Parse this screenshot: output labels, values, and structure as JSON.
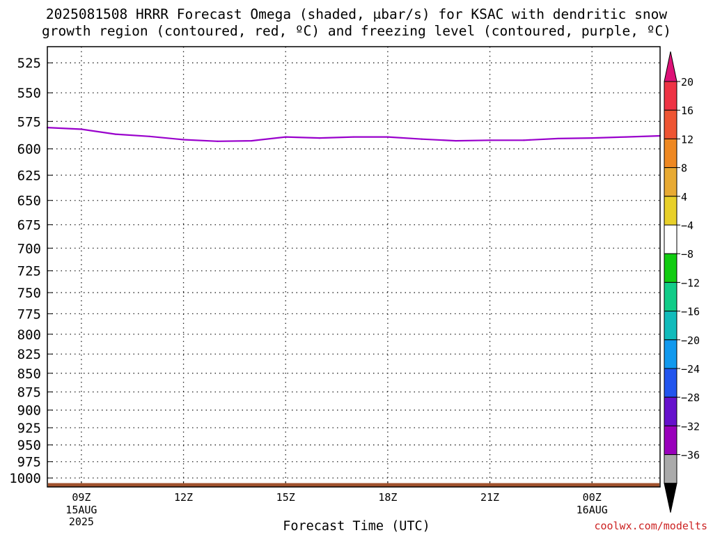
{
  "title_line1": "2025081508 HRRR Forecast Omega (shaded, μbar/s) for KSAC with dendritic snow",
  "title_line2": "growth region (contoured, red, ºC) and freezing level (contoured, purple, ºC)",
  "credit": "coolwx.com/modelts",
  "chart_data": {
    "type": "line",
    "title": "2025081508 HRRR Forecast Omega (shaded, μbar/s) for KSAC with dendritic snow growth region (contoured, red, ºC) and freezing level (contoured, purple, ºC)",
    "xlabel": "Forecast Time (UTC)",
    "ylabel": "",
    "x_hours": [
      8,
      9,
      10,
      11,
      12,
      13,
      14,
      15,
      16,
      17,
      18,
      19,
      20,
      21,
      22,
      23,
      24,
      25,
      26
    ],
    "xlim": [
      8,
      26
    ],
    "x_ticks": [
      {
        "hour": 9,
        "label": "09Z",
        "sub1": "15AUG",
        "sub2": "2025"
      },
      {
        "hour": 12,
        "label": "12Z",
        "sub1": "",
        "sub2": ""
      },
      {
        "hour": 15,
        "label": "15Z",
        "sub1": "",
        "sub2": ""
      },
      {
        "hour": 18,
        "label": "18Z",
        "sub1": "",
        "sub2": ""
      },
      {
        "hour": 21,
        "label": "21Z",
        "sub1": "",
        "sub2": ""
      },
      {
        "hour": 24,
        "label": "00Z",
        "sub1": "16AUG",
        "sub2": ""
      }
    ],
    "y_ticks": [
      525,
      550,
      575,
      600,
      625,
      650,
      675,
      700,
      725,
      750,
      775,
      800,
      825,
      850,
      875,
      900,
      925,
      950,
      975,
      1000
    ],
    "ylim": [
      512,
      1014
    ],
    "y_scale": "log",
    "y_inverted": true,
    "grid": true,
    "series": [
      {
        "name": "freezing level",
        "color": "#9900cc",
        "values": [
          580.5,
          582.0,
          586.5,
          588.5,
          591.5,
          593.0,
          592.5,
          589.0,
          590.0,
          589.0,
          589.0,
          591.0,
          592.5,
          592.0,
          592.0,
          590.5,
          590.0,
          589.0,
          588.0
        ]
      }
    ],
    "surface": {
      "name": "surface",
      "color": "#a0522d",
      "top_hpa": 1008,
      "bottom_hpa": 1014
    },
    "colorbar": {
      "labels": [
        "20",
        "16",
        "12",
        "8",
        "4",
        "−4",
        "−8",
        "−12",
        "−16",
        "−20",
        "−24",
        "−28",
        "−32",
        "−36"
      ],
      "colors": [
        "#ee3344",
        "#ee5533",
        "#ee8822",
        "#e8aa33",
        "#e8d02a",
        "#ffffff",
        "#11cc11",
        "#11cc88",
        "#11bbbb",
        "#1199ee",
        "#2255ee",
        "#6611cc",
        "#9900bb",
        "#aaaaaa"
      ],
      "top_arrow_color": "#dd1177",
      "bottom_arrow_color": "#000000"
    }
  }
}
